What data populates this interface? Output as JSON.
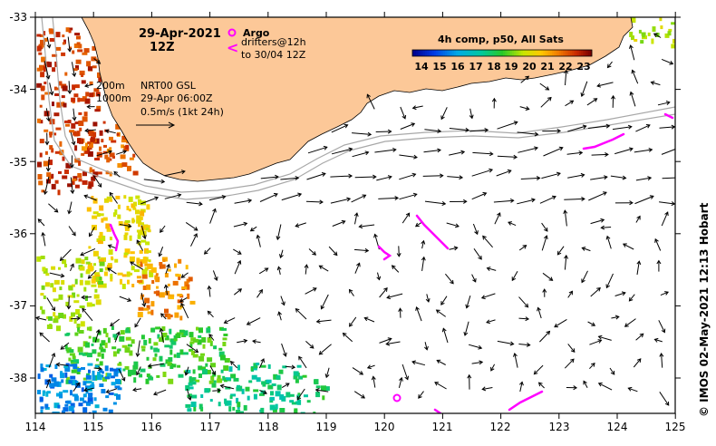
{
  "map": {
    "date_title": "29-Apr-2021",
    "time_title": "12Z",
    "legend": {
      "argo_label": "Argo",
      "argo_color": "#ff00ff",
      "drifters_label": "drifters@12h",
      "drifters_sub": "to 30/04 12Z",
      "drifter_symbol": "<"
    },
    "info": {
      "isobath_1": "200m",
      "isobath_2": "1000m",
      "model": "NRT00 GSL",
      "analysis_time": "29-Apr 06:00Z",
      "arrow_scale": "0.5m/s (1kt 24h)"
    },
    "colorbar": {
      "title": "4h comp, p50, All Sats",
      "ticks": [
        "14",
        "15",
        "16",
        "17",
        "18",
        "19",
        "20",
        "21",
        "22",
        "23"
      ],
      "min": 13.5,
      "max": 23.5
    },
    "credit": "© IMOS 02-May-2021 12:13 Hobart",
    "x_axis": {
      "ticks": [
        "114",
        "115",
        "116",
        "117",
        "118",
        "119",
        "120",
        "121",
        "122",
        "123",
        "124",
        "125"
      ],
      "range": [
        114,
        125
      ]
    },
    "y_axis": {
      "ticks": [
        "-33",
        "-34",
        "-35",
        "-36",
        "-37",
        "-38"
      ],
      "range": [
        -38.5,
        -33
      ]
    },
    "colors": {
      "land": "#fcc898",
      "sea": "#ffffff",
      "isobath": "#a8a8a8",
      "arrow": "#000000",
      "drifter": "#ff00ff"
    }
  }
}
